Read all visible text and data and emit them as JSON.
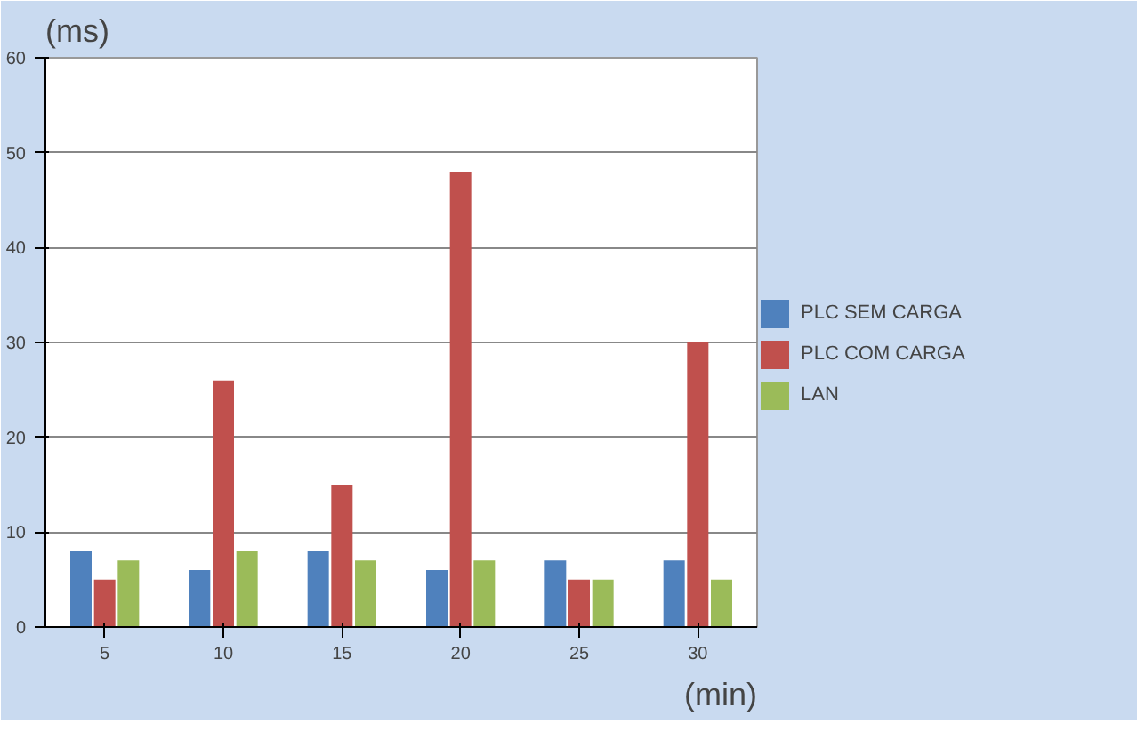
{
  "chart_data": {
    "type": "bar",
    "ylabel": "(ms)",
    "xlabel": "(min)",
    "categories": [
      "5",
      "10",
      "15",
      "20",
      "25",
      "30"
    ],
    "series": [
      {
        "name": "PLC SEM CARGA",
        "color": "#4f81bd",
        "values": [
          8,
          6,
          8,
          6,
          7,
          7
        ]
      },
      {
        "name": "PLC COM CARGA",
        "color": "#c0504d",
        "values": [
          5,
          26,
          15,
          48,
          5,
          30
        ]
      },
      {
        "name": "LAN",
        "color": "#9bbb59",
        "values": [
          7,
          8,
          7,
          7,
          5,
          5
        ]
      }
    ],
    "ylim": [
      0,
      60
    ],
    "yticks": [
      0,
      10,
      20,
      30,
      40,
      50,
      60
    ],
    "grid": "y",
    "legend": "right"
  }
}
